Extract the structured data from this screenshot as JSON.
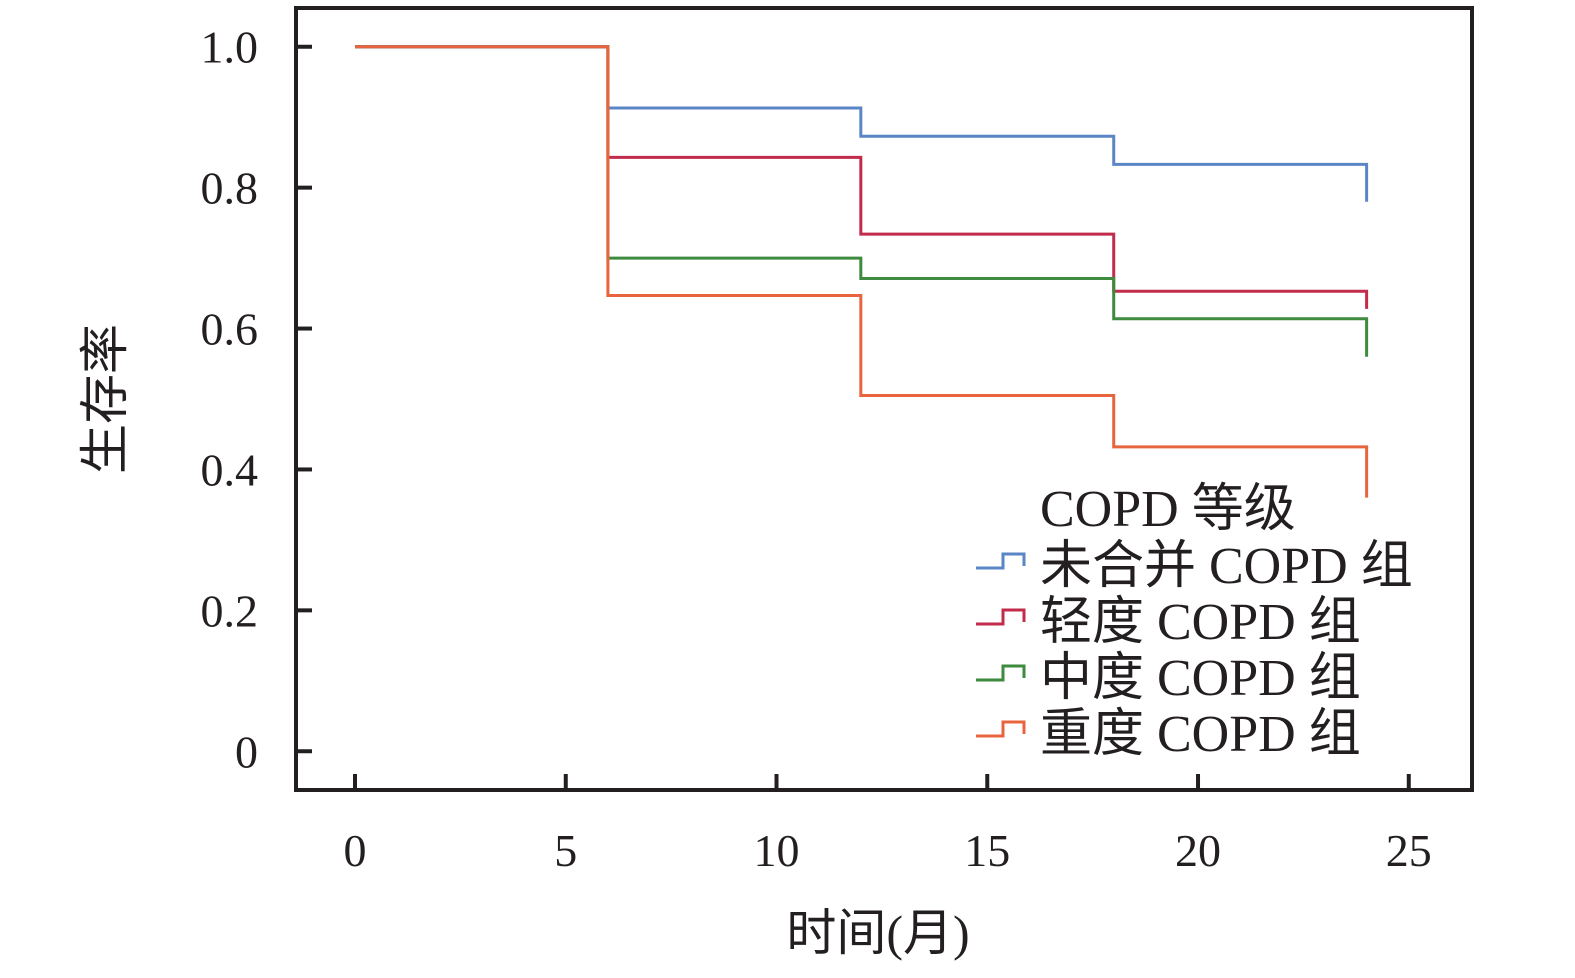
{
  "chart_data": {
    "type": "line",
    "subtype": "step",
    "xlabel": "时间(月)",
    "ylabel": "生存率",
    "xlim": [
      -1.4,
      26.5
    ],
    "ylim": [
      -0.055,
      1.055
    ],
    "xticks": [
      0,
      5,
      10,
      15,
      20,
      25
    ],
    "yticks": [
      0,
      0.2,
      0.4,
      0.6,
      0.8,
      1.0
    ],
    "xtick_labels": [
      "0",
      "5",
      "10",
      "15",
      "20",
      "25"
    ],
    "ytick_labels": [
      "0",
      "0.2",
      "0.4",
      "0.6",
      "0.8",
      "1.0"
    ],
    "grid": false,
    "legend": {
      "title": "COPD 等级",
      "position": "bottom-right"
    },
    "series": [
      {
        "name": "未合并 COPD 组",
        "color": "#5b86c5",
        "steps": [
          {
            "x": 6,
            "y": 0.913
          },
          {
            "x": 12,
            "y": 0.873
          },
          {
            "x": 18,
            "y": 0.833
          }
        ],
        "end_x": 24,
        "end_drop_to": 0.78
      },
      {
        "name": "轻度 COPD 组",
        "color": "#c22c4a",
        "steps": [
          {
            "x": 6,
            "y": 0.843
          },
          {
            "x": 12,
            "y": 0.734
          },
          {
            "x": 18,
            "y": 0.653
          }
        ],
        "end_x": 24,
        "end_drop_to": 0.628
      },
      {
        "name": "中度 COPD 组",
        "color": "#3e8a3e",
        "steps": [
          {
            "x": 6,
            "y": 0.7
          },
          {
            "x": 12,
            "y": 0.671
          },
          {
            "x": 18,
            "y": 0.614
          }
        ],
        "end_x": 24,
        "end_drop_to": 0.56
      },
      {
        "name": "重度 COPD 组",
        "color": "#e8643f",
        "steps": [
          {
            "x": 6,
            "y": 0.647
          },
          {
            "x": 12,
            "y": 0.505
          },
          {
            "x": 18,
            "y": 0.432
          }
        ],
        "end_x": 24,
        "end_drop_to": 0.36
      }
    ],
    "start": {
      "x": 0,
      "y": 1.0
    }
  }
}
